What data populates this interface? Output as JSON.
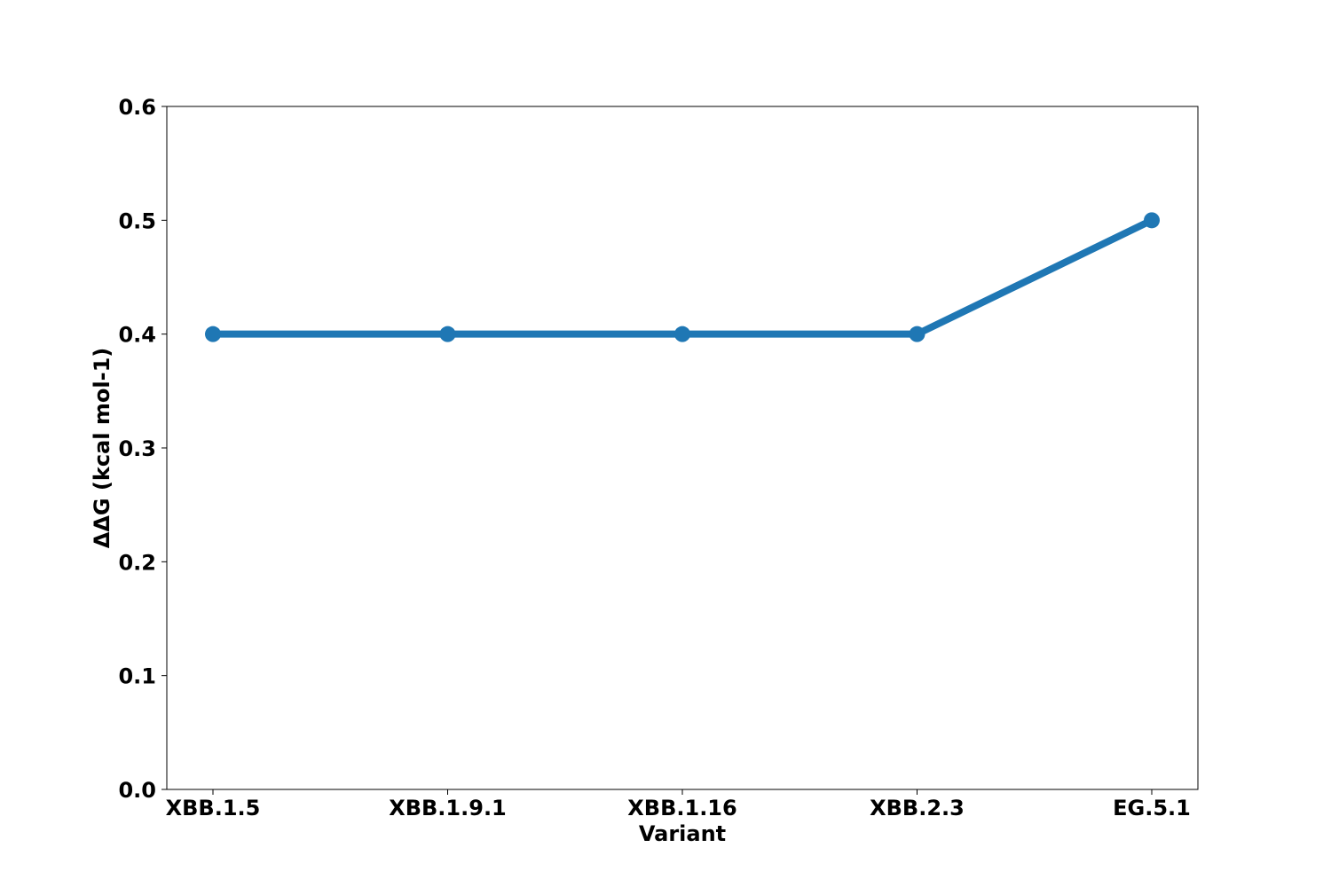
{
  "chart_data": {
    "type": "line",
    "categories": [
      "XBB.1.5",
      "XBB.1.9.1",
      "XBB.1.16",
      "XBB.2.3",
      "EG.5.1"
    ],
    "series": [
      {
        "values": [
          0.4,
          0.4,
          0.4,
          0.4,
          0.5
        ],
        "color": "#1f77b4"
      }
    ],
    "xlabel": "Variant",
    "ylabel": "ΔΔG (kcal mol-1)",
    "ylim": [
      0.0,
      0.6
    ],
    "yticks": [
      "0.0",
      "0.1",
      "0.2",
      "0.3",
      "0.4",
      "0.5",
      "0.6"
    ],
    "grid": false
  }
}
